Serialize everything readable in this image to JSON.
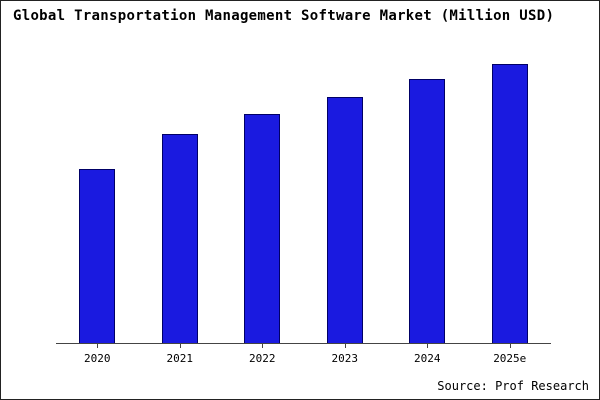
{
  "title": "Global Transportation Management Software Market (Million USD)",
  "source": "Source: Prof Research",
  "colors": {
    "bar_fill": "#1a1ae0",
    "bar_border": "#000066",
    "axis": "#444444",
    "background": "#ffffff"
  },
  "chart_data": {
    "type": "bar",
    "categories": [
      "2020",
      "2021",
      "2022",
      "2023",
      "2024",
      "2025e"
    ],
    "values": [
      625,
      750,
      820,
      880,
      945,
      1000
    ],
    "title": "Global Transportation Management Software Market (Million USD)",
    "xlabel": "",
    "ylabel": "",
    "ylim": [
      0,
      1075
    ],
    "grid": false,
    "legend": false,
    "annotations": [
      "Source: Prof Research"
    ]
  }
}
